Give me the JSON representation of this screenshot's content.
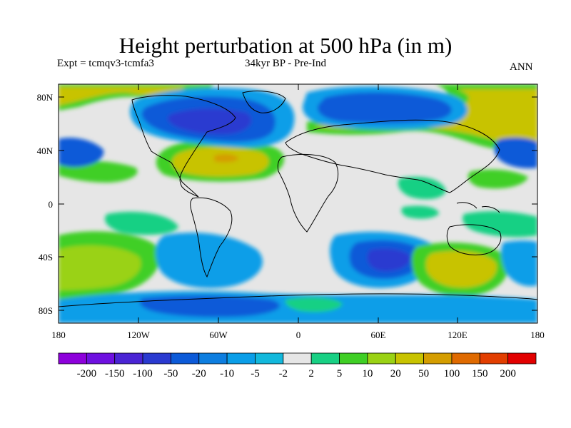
{
  "title": "Height perturbation at 500 hPa (in m)",
  "subtitle_left": "Expt = tcmqv3-tcmfa3",
  "subtitle_center": "34kyr BP - Pre-Ind",
  "subtitle_right": "ANN",
  "lat_ticks": [
    "80N",
    "40N",
    "0",
    "40S",
    "80S"
  ],
  "lon_ticks": [
    "180",
    "120W",
    "60W",
    "0",
    "60E",
    "120E",
    "180"
  ],
  "colorbar": {
    "colors": [
      "#8d00db",
      "#6e10e0",
      "#4a24d4",
      "#2a3ad0",
      "#0c5ad8",
      "#0d7ee0",
      "#0a9ee8",
      "#12b8dc",
      "#e6e6e6",
      "#18d084",
      "#3fcf25",
      "#9ad214",
      "#c8c300",
      "#d49d00",
      "#df6a00",
      "#e23e00",
      "#e20000"
    ],
    "labels": [
      "-200",
      "-150",
      "-100",
      "-50",
      "-20",
      "-10",
      "-5",
      "-2",
      "2",
      "5",
      "10",
      "20",
      "50",
      "100",
      "150",
      "200"
    ]
  },
  "colors": {
    "background": "#ffffff",
    "neutral": "#e6e6e6",
    "coastline": "#000000"
  }
}
